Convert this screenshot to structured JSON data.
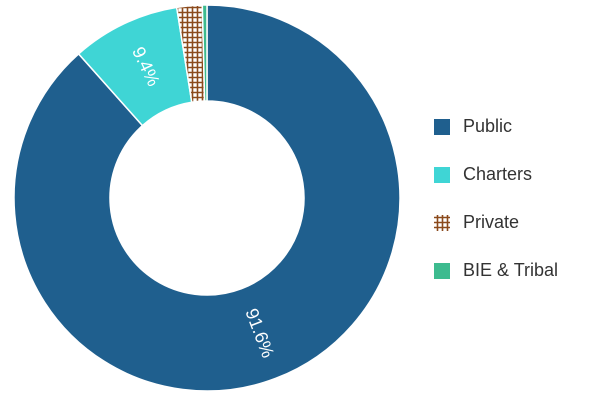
{
  "chart_data": {
    "type": "donut",
    "series": [
      {
        "name": "Public",
        "color": "#1f5f8e",
        "values": [
          91.6
        ],
        "value_labels": [
          "91.6%"
        ]
      },
      {
        "name": "Charters",
        "color": "#3fd5d5",
        "values": [
          9.4
        ],
        "value_labels": [
          "9.4%"
        ]
      },
      {
        "name": "Private",
        "color": "#8b4a1c",
        "values": [
          2.2
        ],
        "pattern": "crosshatch"
      },
      {
        "name": "BIE & Tribal",
        "color": "#3dbb8f",
        "values": [
          0.4
        ]
      }
    ]
  }
}
